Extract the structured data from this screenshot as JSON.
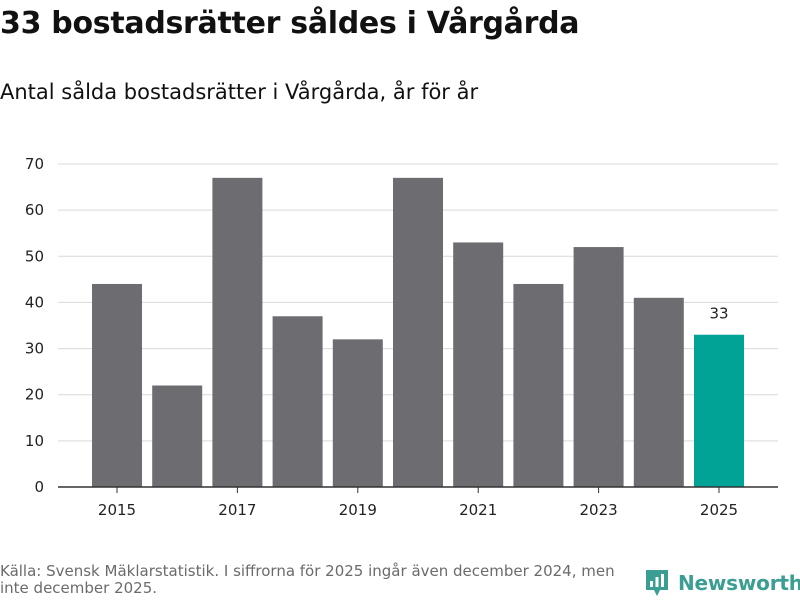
{
  "title": "33 bostadsrätter såldes i Vårgårda",
  "subtitle": "Antal sålda bostadsrätter i Vårgårda, år för år",
  "source": "Källa: Svensk Mäklarstatistik. I siffrorna för 2025 ingår även december 2024, men inte december 2025.",
  "brand": {
    "name": "Newsworthy",
    "color": "#3a9e93",
    "icon": "newsworthy-logo-icon"
  },
  "colors": {
    "bar": "#6d6d71",
    "highlight": "#00a396",
    "grid": "#d9d9d9",
    "axis": "#333333"
  },
  "chart_data": {
    "type": "bar",
    "title": "33 bostadsrätter såldes i Vårgårda",
    "subtitle": "Antal sålda bostadsrätter i Vårgårda, år för år",
    "xlabel": "",
    "ylabel": "",
    "categories": [
      "2015",
      "2016",
      "2017",
      "2018",
      "2019",
      "2020",
      "2021",
      "2022",
      "2023",
      "2024",
      "2025"
    ],
    "values": [
      44,
      22,
      67,
      37,
      32,
      67,
      53,
      44,
      52,
      41,
      33
    ],
    "highlight_index": 10,
    "x_tick_labels": [
      "2015",
      "2017",
      "2019",
      "2021",
      "2023",
      "2025"
    ],
    "y_ticks": [
      0,
      10,
      20,
      30,
      40,
      50,
      60,
      70
    ],
    "ylim": [
      0,
      70
    ],
    "grid": true,
    "data_labels": [
      {
        "category": "2025",
        "text": "33"
      }
    ]
  }
}
